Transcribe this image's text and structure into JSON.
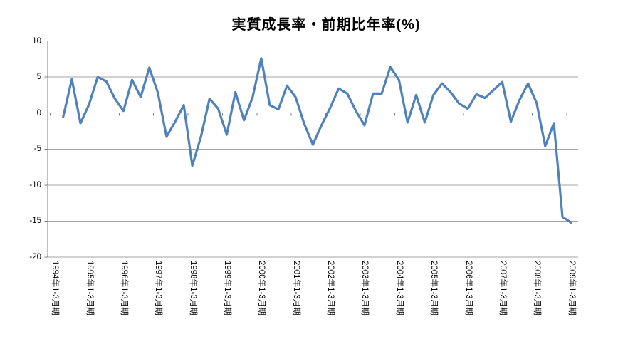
{
  "title": "実質成長率・前期比年率(%)",
  "chart_data": {
    "type": "line",
    "title": "実質成長率・前期比年率(%)",
    "xlabel": "",
    "ylabel": "",
    "ylim": [
      -20,
      10
    ],
    "y_ticks": [
      10,
      5,
      0,
      -5,
      -10,
      -15,
      -20
    ],
    "grid": true,
    "legend": "none",
    "x_axis": {
      "labels": [
        "1994年1-3月期",
        "1995年1-3月期",
        "1996年1-3月期",
        "1997年1-3月期",
        "1998年1-3月期",
        "1999年1-3月期",
        "2000年1-3月期",
        "2001年1-3月期",
        "2002年1-3月期",
        "2003年1-3月期",
        "2004年1-3月期",
        "2005年1-3月期",
        "2006年1-3月期",
        "2007年1-3月期",
        "2008年1-3月期",
        "2009年1-3月期"
      ],
      "points_per_year": 4,
      "first_point_offset": 1
    },
    "series": [
      {
        "name": "実質成長率・前期比年率(%)",
        "color": "#4f81bd",
        "first_quarter_plotted": "1994年4-6月期",
        "values": [
          -0.5,
          4.7,
          -1.4,
          1.2,
          5.0,
          4.4,
          2.0,
          0.3,
          4.6,
          2.2,
          6.3,
          2.8,
          -3.3,
          -1.2,
          1.1,
          -7.3,
          -3.3,
          2.0,
          0.6,
          -3.0,
          2.9,
          -1.0,
          2.2,
          7.6,
          1.1,
          0.5,
          3.8,
          2.2,
          -1.5,
          -4.4,
          -1.7,
          0.7,
          3.4,
          2.7,
          0.3,
          -1.7,
          2.7,
          2.7,
          6.4,
          4.6,
          -1.3,
          2.5,
          -1.3,
          2.5,
          4.1,
          2.9,
          1.3,
          0.6,
          2.6,
          2.1,
          3.2,
          4.3,
          -1.2,
          1.8,
          4.1,
          1.4,
          -4.6,
          -1.4,
          -14.4,
          -15.2
        ]
      }
    ]
  },
  "colors": {
    "series_line": "#4f81bd",
    "gridline": "#a3a3a3",
    "axis_line": "#7f7f7f",
    "background": "#ffffff",
    "text": "#000000"
  }
}
